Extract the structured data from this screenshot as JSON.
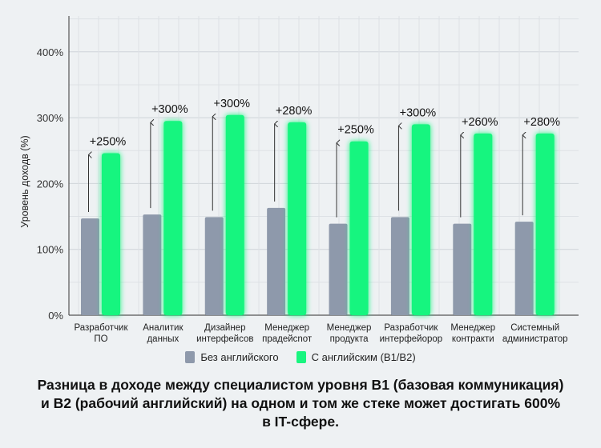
{
  "chart_data": {
    "type": "bar",
    "ylabel": "Уровень доходв (%)",
    "ylim": [
      0,
      450
    ],
    "yticks": [
      "0%",
      "100%",
      "200%",
      "300%",
      "400%"
    ],
    "ytick_values": [
      0,
      100,
      200,
      300,
      400
    ],
    "grid": true,
    "categories": [
      [
        "Разработчик",
        "ПО"
      ],
      [
        "Аналитик",
        "данных"
      ],
      [
        "Дизайнер",
        "интерфейсов"
      ],
      [
        "Менеджер",
        "прадейсnот"
      ],
      [
        "Менеджер",
        "продукта"
      ],
      [
        "Разработчик",
        "интерфейорор"
      ],
      [
        "Менеджер",
        "контракти"
      ],
      [
        "Системный",
        "администратор"
      ]
    ],
    "series": [
      {
        "name": "Без английского",
        "color": "#8e99ab",
        "values": [
          147,
          153,
          149,
          163,
          139,
          149,
          139,
          142
        ]
      },
      {
        "name": "С английским (B1/B2)",
        "color": "#19f57f",
        "values": [
          246,
          295,
          304,
          293,
          264,
          290,
          276,
          276
        ]
      }
    ],
    "annotations": [
      "+250%",
      "+300%",
      "+300%",
      "+280%",
      "+250%",
      "+300%",
      "+260%",
      "+280%"
    ],
    "legend_position": "bottom"
  },
  "caption": [
    "Разница в доходе между специалистом уровня B1 (базовая коммуникация)",
    "и B2 (рабочий английский) на одном и том же стеке может достигать 600%",
    "в IT-сфере."
  ]
}
